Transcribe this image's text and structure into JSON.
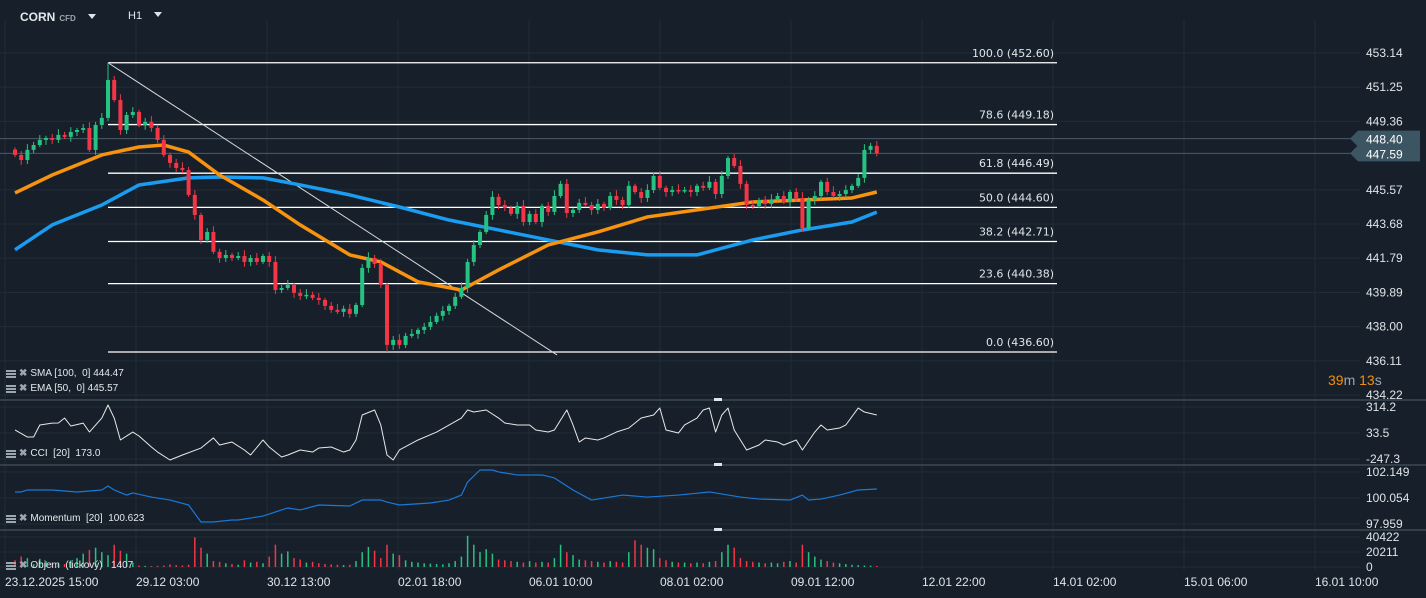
{
  "header": {
    "symbol": "CORN",
    "symbol_type": "CFD",
    "timeframe": "H1"
  },
  "colors": {
    "background": "#17202a",
    "bull": "#26c281",
    "bear": "#f23645",
    "sma": "#1a9cf0",
    "ema": "#f7930f",
    "fib": "#ffffff",
    "indicator_line": "#e8e8e8",
    "momentum_line": "#1a78d8"
  },
  "countdown": {
    "minutes": "39",
    "m": "m",
    "seconds": "13",
    "s": "s"
  },
  "price_labels": {
    "ask": "448.40",
    "bid": "447.59"
  },
  "legends": {
    "sma": "SMA [100,  0] 444.47",
    "ema": "EMA [50,  0] 445.57",
    "cci": "CCI  [20]  173.0",
    "momentum": "Momentum  [20]  100.623",
    "volume": "Objem  (tickový)   1407"
  },
  "chart_data": [
    {
      "type": "candlestick",
      "panel": "price",
      "y_ticks": [
        "453.14",
        "451.25",
        "449.36",
        "445.57",
        "443.68",
        "441.79",
        "439.89",
        "438.00",
        "436.11",
        "434.22"
      ],
      "ylim": [
        434.22,
        453.14
      ],
      "x_ticks": [
        "23.12.2025  15:00",
        "29.12  03:00",
        "30.12  13:00",
        "02.01  18:00",
        "06.01  10:00",
        "08.01  02:00",
        "09.01  12:00",
        "12.01  22:00",
        "14.01  02:00",
        "15.01  06:00",
        "16.01  10:00"
      ],
      "first_open": 447.8,
      "closes": [
        447.5,
        447.22,
        447.78,
        448.05,
        448.33,
        448.44,
        448.33,
        448.61,
        448.5,
        448.77,
        448.88,
        448.99,
        447.78,
        449.16,
        449.55,
        451.65,
        450.54,
        448.88,
        449.71,
        449.88,
        449.16,
        449.33,
        449.0,
        448.33,
        447.5,
        447.06,
        446.78,
        446.67,
        445.29,
        444.18,
        442.8,
        443.24,
        442.14,
        441.8,
        441.97,
        441.8,
        441.91,
        441.58,
        441.8,
        441.58,
        441.91,
        441.58,
        440.03,
        440.14,
        440.31,
        439.87,
        439.7,
        439.76,
        439.59,
        439.48,
        439.15,
        438.93,
        438.82,
        438.99,
        438.71,
        439.2,
        441.25,
        441.8,
        441.47,
        440.31,
        436.99,
        437.27,
        436.99,
        437.49,
        437.6,
        437.82,
        437.99,
        438.26,
        438.6,
        438.87,
        439.15,
        439.65,
        440.14,
        441.58,
        442.52,
        443.24,
        444.18,
        445.18,
        444.73,
        444.57,
        444.24,
        444.68,
        443.79,
        444.24,
        443.79,
        444.68,
        444.35,
        445.23,
        445.9,
        444.29,
        444.46,
        444.85,
        444.73,
        444.46,
        444.79,
        444.57,
        445.23,
        445.01,
        444.73,
        445.79,
        445.45,
        445.12,
        445.56,
        446.34,
        445.68,
        445.45,
        445.56,
        445.51,
        445.56,
        445.45,
        445.79,
        445.68,
        446.01,
        445.34,
        446.34,
        447.33,
        446.89,
        445.9,
        444.73,
        444.68,
        445.01,
        444.79,
        445.01,
        445.23,
        444.9,
        445.45,
        445.12,
        443.46,
        445.01,
        445.23,
        446.01,
        445.45,
        445.23,
        445.34,
        445.56,
        445.79,
        446.23,
        447.78,
        448.0,
        447.59
      ],
      "high_extremes": {
        "15": 452.6
      },
      "low_extremes": {
        "60": 436.6
      },
      "sma": {
        "name": "SMA [100, 0]",
        "points": [
          [
            0,
            442.25
          ],
          [
            6,
            443.63
          ],
          [
            14,
            444.73
          ],
          [
            20,
            445.84
          ],
          [
            28,
            446.23
          ],
          [
            33,
            446.28
          ],
          [
            40,
            446.23
          ],
          [
            46,
            445.84
          ],
          [
            54,
            445.29
          ],
          [
            62,
            444.62
          ],
          [
            70,
            443.9
          ],
          [
            78,
            443.35
          ],
          [
            86,
            442.8
          ],
          [
            94,
            442.25
          ],
          [
            102,
            441.97
          ],
          [
            110,
            441.97
          ],
          [
            119,
            442.8
          ],
          [
            127,
            443.35
          ],
          [
            135,
            443.79
          ],
          [
            139,
            444.34
          ]
        ]
      },
      "ema": {
        "name": "EMA [50, 0]",
        "points": [
          [
            0,
            445.4
          ],
          [
            6,
            446.39
          ],
          [
            14,
            447.5
          ],
          [
            20,
            447.94
          ],
          [
            24,
            448.05
          ],
          [
            28,
            447.66
          ],
          [
            33,
            446.39
          ],
          [
            40,
            445.01
          ],
          [
            46,
            443.63
          ],
          [
            54,
            441.97
          ],
          [
            59,
            441.58
          ],
          [
            65,
            440.48
          ],
          [
            72,
            440.03
          ],
          [
            78,
            441.14
          ],
          [
            86,
            442.52
          ],
          [
            94,
            443.24
          ],
          [
            102,
            444.07
          ],
          [
            110,
            444.46
          ],
          [
            119,
            444.9
          ],
          [
            127,
            445.01
          ],
          [
            135,
            445.12
          ],
          [
            139,
            445.45
          ]
        ]
      },
      "fibonacci": {
        "from": 452.6,
        "to": 436.6,
        "levels": [
          {
            "label": "100.0 (452.60)",
            "price": 452.6
          },
          {
            "label": "78.6 (449.18)",
            "price": 449.18
          },
          {
            "label": "61.8 (446.49)",
            "price": 446.49
          },
          {
            "label": "50.0 (444.60)",
            "price": 444.6
          },
          {
            "label": "38.2 (442.71)",
            "price": 442.71
          },
          {
            "label": "23.6 (440.38)",
            "price": 440.38
          },
          {
            "label": "0.0 (436.60)",
            "price": 436.6
          }
        ]
      }
    },
    {
      "type": "line",
      "panel": "cci",
      "name": "CCI [20]",
      "y_ticks": [
        "314.2",
        "33.5",
        "-247.3"
      ],
      "ylim": [
        -247.3,
        314.2
      ],
      "points": [
        [
          0,
          66
        ],
        [
          2,
          -10
        ],
        [
          3,
          -10
        ],
        [
          4,
          120
        ],
        [
          6,
          140
        ],
        [
          7,
          141
        ],
        [
          8,
          195
        ],
        [
          9,
          109
        ],
        [
          11,
          140
        ],
        [
          12,
          44
        ],
        [
          14,
          195
        ],
        [
          15,
          336
        ],
        [
          16,
          195
        ],
        [
          17,
          -42
        ],
        [
          19,
          44
        ],
        [
          20,
          1
        ],
        [
          22,
          -118
        ],
        [
          23,
          -172
        ],
        [
          25,
          -258
        ],
        [
          27,
          -204
        ],
        [
          30,
          -129
        ],
        [
          32,
          -20
        ],
        [
          33,
          -96
        ],
        [
          35,
          -64
        ],
        [
          37,
          -150
        ],
        [
          38,
          -204
        ],
        [
          40,
          -42
        ],
        [
          41,
          -118
        ],
        [
          43,
          -226
        ],
        [
          44,
          -204
        ],
        [
          46,
          -150
        ],
        [
          48,
          -172
        ],
        [
          49,
          -129
        ],
        [
          51,
          -118
        ],
        [
          53,
          -172
        ],
        [
          54,
          -150
        ],
        [
          55,
          -42
        ],
        [
          56,
          228
        ],
        [
          58,
          282
        ],
        [
          59,
          120
        ],
        [
          60,
          -204
        ],
        [
          61,
          -258
        ],
        [
          62,
          -150
        ],
        [
          65,
          -42
        ],
        [
          68,
          44
        ],
        [
          72,
          195
        ],
        [
          73,
          282
        ],
        [
          74,
          260
        ],
        [
          76,
          282
        ],
        [
          78,
          195
        ],
        [
          79,
          141
        ],
        [
          81,
          120
        ],
        [
          83,
          120
        ],
        [
          84,
          66
        ],
        [
          86,
          44
        ],
        [
          87,
          66
        ],
        [
          89,
          282
        ],
        [
          90,
          120
        ],
        [
          91,
          -64
        ],
        [
          92,
          -20
        ],
        [
          94,
          -42
        ],
        [
          95,
          -20
        ],
        [
          97,
          44
        ],
        [
          99,
          87
        ],
        [
          101,
          195
        ],
        [
          103,
          228
        ],
        [
          104,
          303
        ],
        [
          105,
          66
        ],
        [
          107,
          33
        ],
        [
          108,
          120
        ],
        [
          110,
          195
        ],
        [
          111,
          282
        ],
        [
          112,
          303
        ],
        [
          113,
          44
        ],
        [
          114,
          228
        ],
        [
          115,
          303
        ],
        [
          116,
          66
        ],
        [
          118,
          -150
        ],
        [
          120,
          -96
        ],
        [
          121,
          -42
        ],
        [
          123,
          -64
        ],
        [
          124,
          -96
        ],
        [
          126,
          -42
        ],
        [
          127,
          -150
        ],
        [
          129,
          44
        ],
        [
          130,
          120
        ],
        [
          131,
          66
        ],
        [
          133,
          87
        ],
        [
          134,
          120
        ],
        [
          136,
          303
        ],
        [
          137,
          260
        ],
        [
          139,
          228
        ]
      ]
    },
    {
      "type": "line",
      "panel": "momentum",
      "name": "Momentum [20]",
      "y_ticks": [
        "102.149",
        "100.054",
        "97.959"
      ],
      "ylim": [
        97.959,
        102.149
      ],
      "points": [
        [
          0,
          100.54
        ],
        [
          1,
          100.54
        ],
        [
          2,
          100.7
        ],
        [
          6,
          100.7
        ],
        [
          10,
          100.54
        ],
        [
          14,
          100.7
        ],
        [
          15,
          101.02
        ],
        [
          16,
          100.7
        ],
        [
          18,
          100.29
        ],
        [
          19,
          100.46
        ],
        [
          22,
          100.13
        ],
        [
          25,
          99.89
        ],
        [
          28,
          99.49
        ],
        [
          30,
          98.12
        ],
        [
          32,
          98.12
        ],
        [
          35,
          98.28
        ],
        [
          36,
          98.28
        ],
        [
          38,
          98.44
        ],
        [
          40,
          98.6
        ],
        [
          43,
          99.09
        ],
        [
          44,
          99.25
        ],
        [
          46,
          99.09
        ],
        [
          49,
          99.49
        ],
        [
          54,
          99.41
        ],
        [
          56,
          99.89
        ],
        [
          57,
          99.89
        ],
        [
          59,
          99.89
        ],
        [
          60,
          99.73
        ],
        [
          62,
          99.49
        ],
        [
          67,
          99.65
        ],
        [
          70,
          99.89
        ],
        [
          72,
          100.29
        ],
        [
          73,
          101.34
        ],
        [
          75,
          102.31
        ],
        [
          77,
          102.31
        ],
        [
          78,
          102.15
        ],
        [
          81,
          101.91
        ],
        [
          85,
          101.91
        ],
        [
          87,
          101.67
        ],
        [
          90,
          100.7
        ],
        [
          93,
          99.89
        ],
        [
          98,
          100.29
        ],
        [
          102,
          100.13
        ],
        [
          107,
          100.29
        ],
        [
          112,
          100.54
        ],
        [
          117,
          100.13
        ],
        [
          120,
          99.97
        ],
        [
          125,
          99.89
        ],
        [
          127,
          100.29
        ],
        [
          128,
          99.89
        ],
        [
          130,
          99.97
        ],
        [
          133,
          100.29
        ],
        [
          136,
          100.7
        ],
        [
          139,
          100.78
        ]
      ]
    },
    {
      "type": "bar",
      "panel": "volume",
      "name": "Objem (tickový)",
      "y_ticks": [
        "40422",
        "20211",
        "0"
      ],
      "ylim": [
        0,
        40422
      ],
      "values": [
        9000,
        14000,
        12000,
        4000,
        11000,
        8000,
        6000,
        5000,
        4000,
        9000,
        12000,
        18000,
        23000,
        26000,
        20000,
        16000,
        30000,
        22000,
        18000,
        6000,
        2000,
        1500,
        1200,
        1500,
        2000,
        3500,
        2500,
        2000,
        3000,
        40000,
        26000,
        18000,
        8000,
        7000,
        5000,
        4000,
        3000,
        9000,
        6000,
        7000,
        5000,
        14000,
        30000,
        18000,
        21000,
        12000,
        10000,
        6000,
        7000,
        5000,
        4000,
        3500,
        3000,
        2500,
        3000,
        8000,
        20000,
        27000,
        22000,
        12000,
        30000,
        18000,
        16000,
        9000,
        7000,
        6000,
        5000,
        4500,
        4000,
        3500,
        5000,
        8000,
        14000,
        42000,
        30000,
        20000,
        24000,
        18000,
        10000,
        9000,
        8000,
        7000,
        6000,
        8000,
        6000,
        7000,
        6000,
        12000,
        30000,
        20000,
        16000,
        10000,
        9000,
        8000,
        7000,
        6000,
        8000,
        7000,
        6000,
        20000,
        36000,
        30000,
        26000,
        24000,
        12000,
        9000,
        7000,
        6000,
        6000,
        5000,
        6000,
        5000,
        7000,
        8000,
        20000,
        30000,
        26000,
        12000,
        8000,
        7000,
        6000,
        5000,
        6000,
        5000,
        7000,
        8000,
        6000,
        30000,
        20000,
        14000,
        10000,
        8000,
        6000,
        5000,
        4000,
        3000,
        2500,
        2000,
        1800,
        1407
      ]
    }
  ]
}
